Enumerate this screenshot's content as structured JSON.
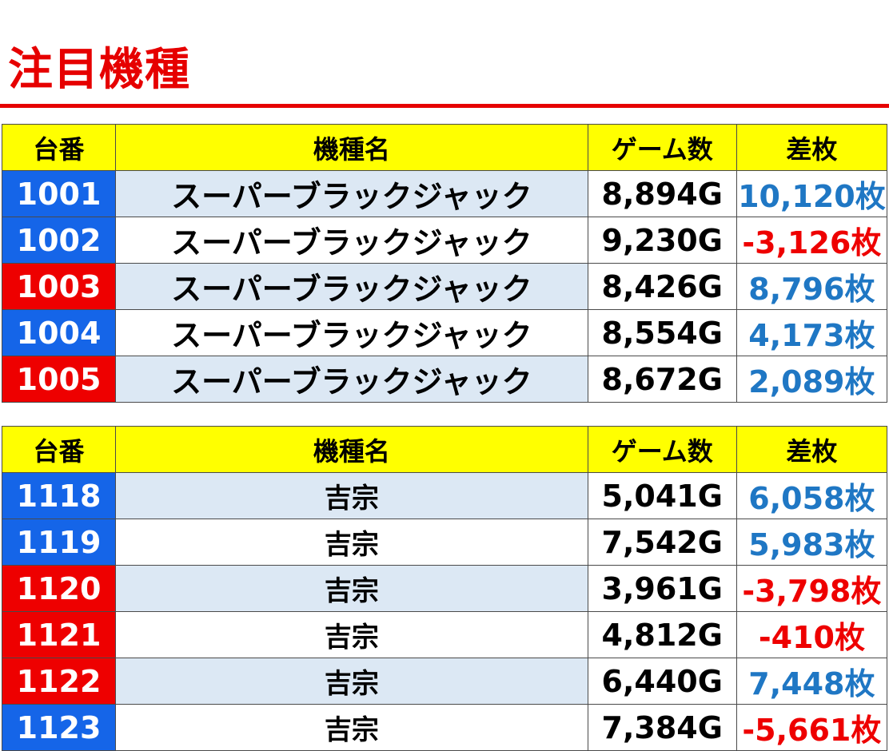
{
  "title": "注目機種",
  "headers": {
    "no": "台番",
    "name": "機種名",
    "games": "ゲーム数",
    "diff": "差枚"
  },
  "colors": {
    "title": "#e60000",
    "header_bg": "#ffff00",
    "blue": "#1565e8",
    "red": "#ee0000",
    "positive": "#1f77c4",
    "negative": "#ee0000",
    "row_shade": "#dce8f4"
  },
  "tables": [
    {
      "rows": [
        {
          "no": "1001",
          "no_color": "blue",
          "name": "スーパーブラックジャック",
          "games": "8,894G",
          "diff": "10,120枚",
          "sign": "pos",
          "shade": true
        },
        {
          "no": "1002",
          "no_color": "blue",
          "name": "スーパーブラックジャック",
          "games": "9,230G",
          "diff": "-3,126枚",
          "sign": "neg",
          "shade": false
        },
        {
          "no": "1003",
          "no_color": "red",
          "name": "スーパーブラックジャック",
          "games": "8,426G",
          "diff": "8,796枚",
          "sign": "pos",
          "shade": true
        },
        {
          "no": "1004",
          "no_color": "blue",
          "name": "スーパーブラックジャック",
          "games": "8,554G",
          "diff": "4,173枚",
          "sign": "pos",
          "shade": false
        },
        {
          "no": "1005",
          "no_color": "red",
          "name": "スーパーブラックジャック",
          "games": "8,672G",
          "diff": "2,089枚",
          "sign": "pos",
          "shade": true
        }
      ]
    },
    {
      "rows": [
        {
          "no": "1118",
          "no_color": "blue",
          "name": "吉宗",
          "games": "5,041G",
          "diff": "6,058枚",
          "sign": "pos",
          "shade": true
        },
        {
          "no": "1119",
          "no_color": "blue",
          "name": "吉宗",
          "games": "7,542G",
          "diff": "5,983枚",
          "sign": "pos",
          "shade": false
        },
        {
          "no": "1120",
          "no_color": "red",
          "name": "吉宗",
          "games": "3,961G",
          "diff": "-3,798枚",
          "sign": "neg",
          "shade": true
        },
        {
          "no": "1121",
          "no_color": "red",
          "name": "吉宗",
          "games": "4,812G",
          "diff": "-410枚",
          "sign": "neg",
          "shade": false
        },
        {
          "no": "1122",
          "no_color": "red",
          "name": "吉宗",
          "games": "6,440G",
          "diff": "7,448枚",
          "sign": "pos",
          "shade": true
        },
        {
          "no": "1123",
          "no_color": "blue",
          "name": "吉宗",
          "games": "7,384G",
          "diff": "-5,661枚",
          "sign": "neg",
          "shade": false
        }
      ]
    }
  ]
}
